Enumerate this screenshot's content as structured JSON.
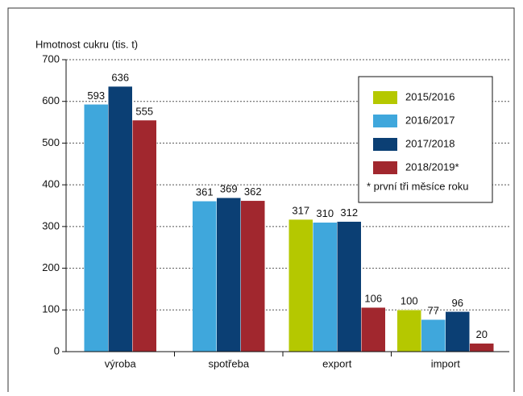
{
  "chart_data": {
    "type": "bar",
    "y_label": "Hmotnost cukru  (tis. t)",
    "categories": [
      "výroba",
      "spotřeba",
      "export",
      "import"
    ],
    "series": [
      {
        "name": "2015/2016",
        "color": "#b5c800",
        "values": [
          null,
          null,
          317,
          100
        ]
      },
      {
        "name": "2016/2017",
        "color": "#3fa7dc",
        "values": [
          593,
          361,
          310,
          77
        ]
      },
      {
        "name": "2017/2018",
        "color": "#0b3f74",
        "values": [
          636,
          369,
          312,
          96
        ]
      },
      {
        "name": "2018/2019*",
        "color": "#a1272e",
        "values": [
          555,
          362,
          106,
          20
        ]
      }
    ],
    "note": "* první tři měsíce roku",
    "ylim": [
      0,
      700
    ],
    "yticks": [
      0,
      100,
      200,
      300,
      400,
      500,
      600,
      700
    ],
    "grid": true,
    "legend": "top-right"
  }
}
